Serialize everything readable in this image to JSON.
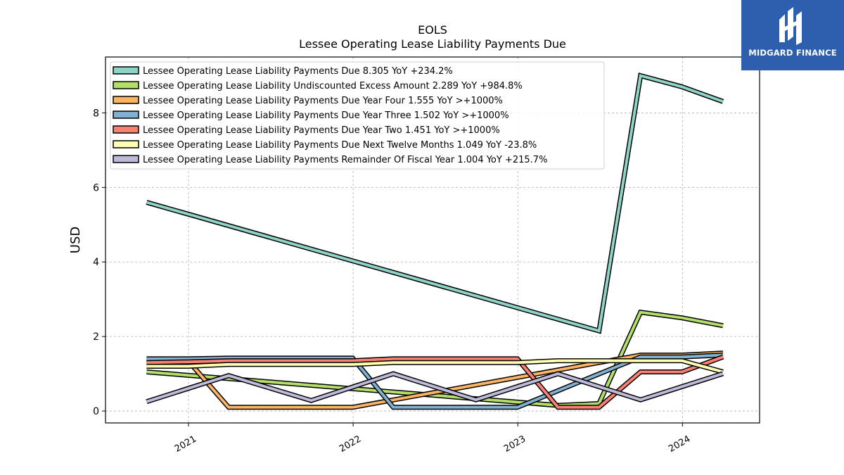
{
  "chart_data": {
    "type": "line",
    "title": "EOLS",
    "subtitle": "Lessee Operating Lease Liability Payments Due",
    "xlabel": "",
    "ylabel": "USD",
    "xlim": [
      "2020-07-01",
      "2024-06-20"
    ],
    "ylim": [
      -0.32,
      9.5
    ],
    "yticks": [
      0,
      2,
      4,
      6,
      8
    ],
    "xticks": [
      "2021-01-01",
      "2022-01-01",
      "2023-01-01",
      "2024-01-01"
    ],
    "xtick_labels": [
      "2021",
      "2022",
      "2023",
      "2024"
    ],
    "grid": true,
    "legend_position": "upper-left",
    "series": [
      {
        "name": "Lessee Operating Lease Liability Payments Due  8.305 YoY +234.2%",
        "color": "#8dd3c7",
        "points": [
          [
            "2020-09-30",
            5.6
          ],
          [
            "2023-06-30",
            2.15
          ],
          [
            "2023-09-30",
            9.0
          ],
          [
            "2023-12-31",
            8.7
          ],
          [
            "2024-03-31",
            8.305
          ]
        ]
      },
      {
        "name": "Lessee Operating Lease Liability Undiscounted Excess Amount  2.289 YoY +984.8%",
        "color": "#b3de69",
        "points": [
          [
            "2020-09-30",
            1.05
          ],
          [
            "2023-03-31",
            0.15
          ],
          [
            "2023-06-30",
            0.2
          ],
          [
            "2023-09-30",
            2.65
          ],
          [
            "2023-12-31",
            2.5
          ],
          [
            "2024-03-31",
            2.289
          ]
        ]
      },
      {
        "name": "Lessee Operating Lease Liability Payments Due Year Four  1.555 YoY >+1000%",
        "color": "#fdb462",
        "points": [
          [
            "2020-09-30",
            1.35
          ],
          [
            "2020-12-31",
            1.35
          ],
          [
            "2021-03-31",
            0.1
          ],
          [
            "2021-12-31",
            0.1
          ],
          [
            "2023-06-30",
            1.3
          ],
          [
            "2023-09-30",
            1.5
          ],
          [
            "2023-12-31",
            1.5
          ],
          [
            "2024-03-31",
            1.555
          ]
        ]
      },
      {
        "name": "Lessee Operating Lease Liability Payments Due Year Three  1.502 YoY >+1000%",
        "color": "#80b1d3",
        "points": [
          [
            "2020-09-30",
            1.4
          ],
          [
            "2020-12-31",
            1.4
          ],
          [
            "2021-03-31",
            1.42
          ],
          [
            "2021-12-31",
            1.42
          ],
          [
            "2022-03-31",
            0.1
          ],
          [
            "2022-12-31",
            0.1
          ],
          [
            "2023-09-30",
            1.45
          ],
          [
            "2023-12-31",
            1.45
          ],
          [
            "2024-03-31",
            1.502
          ]
        ]
      },
      {
        "name": "Lessee Operating Lease Liability Payments Due Year Two  1.451 YoY >+1000%",
        "color": "#fb8072",
        "points": [
          [
            "2020-09-30",
            1.3
          ],
          [
            "2020-12-31",
            1.32
          ],
          [
            "2021-03-31",
            1.35
          ],
          [
            "2021-12-31",
            1.35
          ],
          [
            "2022-03-31",
            1.4
          ],
          [
            "2022-12-31",
            1.4
          ],
          [
            "2023-03-31",
            0.1
          ],
          [
            "2023-06-30",
            0.1
          ],
          [
            "2023-09-30",
            1.05
          ],
          [
            "2023-12-31",
            1.05
          ],
          [
            "2024-03-31",
            1.451
          ]
        ]
      },
      {
        "name": "Lessee Operating Lease Liability Payments Due Next Twelve Months  1.049 YoY -23.8%",
        "color": "#ffffb3",
        "points": [
          [
            "2020-09-30",
            1.2
          ],
          [
            "2020-12-31",
            1.2
          ],
          [
            "2021-03-31",
            1.25
          ],
          [
            "2021-12-31",
            1.25
          ],
          [
            "2022-03-31",
            1.3
          ],
          [
            "2022-12-31",
            1.3
          ],
          [
            "2023-03-31",
            1.35
          ],
          [
            "2023-12-31",
            1.35
          ],
          [
            "2024-03-31",
            1.049
          ]
        ]
      },
      {
        "name": "Lessee Operating Lease Liability Payments Remainder Of Fiscal Year  1.004 YoY +215.7%",
        "color": "#bebada",
        "points": [
          [
            "2020-09-30",
            0.25
          ],
          [
            "2021-03-31",
            0.95
          ],
          [
            "2021-09-30",
            0.28
          ],
          [
            "2022-03-31",
            1.0
          ],
          [
            "2022-09-30",
            0.3
          ],
          [
            "2023-03-31",
            1.0
          ],
          [
            "2023-09-30",
            0.3
          ],
          [
            "2024-03-31",
            1.004
          ]
        ]
      }
    ]
  },
  "logo": {
    "text": "MIDGARD FINANCE",
    "background": "#2d5fae"
  }
}
